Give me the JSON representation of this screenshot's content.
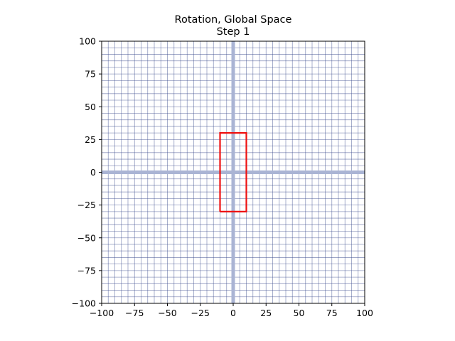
{
  "chart_data": {
    "type": "line",
    "title": "Rotation, Global Space",
    "subtitle": "Step 1",
    "xlabel": "",
    "ylabel": "",
    "xlim": [
      -100,
      100
    ],
    "ylim": [
      -100,
      100
    ],
    "x_ticks": [
      -100,
      -75,
      -50,
      -25,
      0,
      25,
      50,
      75,
      100
    ],
    "y_ticks": [
      -100,
      -75,
      -50,
      -25,
      0,
      25,
      50,
      75,
      100
    ],
    "x_tick_labels": [
      "−100",
      "−75",
      "−50",
      "−25",
      "0",
      "25",
      "50",
      "75",
      "100"
    ],
    "y_tick_labels": [
      "−100",
      "−75",
      "−50",
      "−25",
      "0",
      "25",
      "50",
      "75",
      "100"
    ],
    "grid": true,
    "grid_step": 5,
    "grid_color": "#3b4a8c",
    "axis_band_color": "#aab4d4",
    "series": [
      {
        "values": [
          [
            -10,
            -30
          ],
          [
            10,
            -30
          ],
          [
            10,
            30
          ],
          [
            -10,
            30
          ],
          [
            -10,
            -30
          ]
        ],
        "color": "#ee1111"
      }
    ]
  }
}
